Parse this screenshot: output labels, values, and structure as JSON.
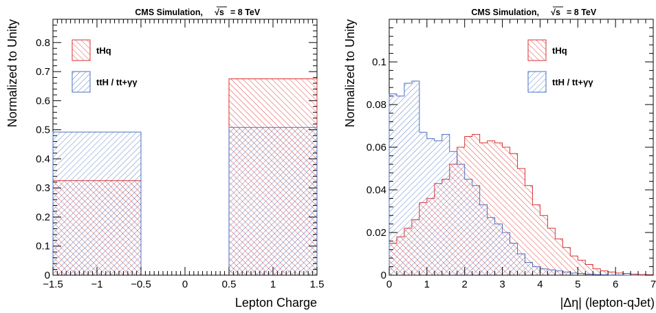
{
  "colors": {
    "tHq": "#d9312f",
    "ttH": "#4a6fc0"
  },
  "chart_data": [
    {
      "type": "histogram",
      "header": "CMS Simulation,",
      "energy": "= 8 TeV",
      "sqrt_symbol": "√s",
      "xlabel": "Lepton Charge",
      "ylabel": "Normalized to Unity",
      "xlim": [
        -1.5,
        1.5
      ],
      "ylim": [
        0,
        0.88
      ],
      "x_ticks": [
        -1.5,
        -1,
        -0.5,
        0,
        0.5,
        1,
        1.5
      ],
      "x_tick_labels": [
        "−1.5",
        "−1",
        "−0.5",
        "0",
        "0.5",
        "1",
        "1.5"
      ],
      "y_ticks": [
        0,
        0.1,
        0.2,
        0.3,
        0.4,
        0.5,
        0.6,
        0.7,
        0.8
      ],
      "y_tick_labels": [
        "0",
        "0.1",
        "0.2",
        "0.3",
        "0.4",
        "0.5",
        "0.6",
        "0.7",
        "0.8"
      ],
      "legend_placement": "top-left",
      "series": [
        {
          "name": "tHq",
          "bins": [
            [
              -1.5,
              -0.5,
              0.325
            ],
            [
              0.5,
              1.5,
              0.675
            ]
          ]
        },
        {
          "name": "ttH / tt+γγ",
          "bins": [
            [
              -1.5,
              -0.5,
              0.492
            ],
            [
              0.5,
              1.5,
              0.508
            ]
          ]
        }
      ]
    },
    {
      "type": "histogram",
      "header": "CMS Simulation,",
      "energy": "= 8 TeV",
      "sqrt_symbol": "√s",
      "xlabel": "|Δη| (lepton-qJet)",
      "ylabel": "Normalized to Unity",
      "xlim": [
        0,
        7
      ],
      "ylim": [
        0,
        0.12
      ],
      "x_ticks": [
        0,
        1,
        2,
        3,
        4,
        5,
        6,
        7
      ],
      "x_tick_labels": [
        "0",
        "1",
        "2",
        "3",
        "4",
        "5",
        "6",
        "7"
      ],
      "y_ticks": [
        0,
        0.02,
        0.04,
        0.06,
        0.08,
        0.1
      ],
      "y_tick_labels": [
        "0",
        "0.02",
        "0.04",
        "0.06",
        "0.08",
        "0.1"
      ],
      "legend_placement": "top-right",
      "bin_edges": [
        0,
        0.2,
        0.4,
        0.6,
        0.8,
        1.0,
        1.2,
        1.4,
        1.6,
        1.8,
        2.0,
        2.2,
        2.4,
        2.6,
        2.8,
        3.0,
        3.2,
        3.4,
        3.6,
        3.8,
        4.0,
        4.2,
        4.4,
        4.6,
        4.8,
        5.0,
        5.2,
        5.4,
        5.6,
        5.8,
        6.0,
        6.2,
        6.4,
        6.6,
        6.8,
        7.0
      ],
      "series": [
        {
          "name": "tHq",
          "values": [
            0.015,
            0.018,
            0.022,
            0.026,
            0.034,
            0.036,
            0.043,
            0.045,
            0.052,
            0.06,
            0.065,
            0.066,
            0.062,
            0.063,
            0.062,
            0.06,
            0.057,
            0.05,
            0.042,
            0.033,
            0.028,
            0.022,
            0.017,
            0.013,
            0.009,
            0.007,
            0.005,
            0.003,
            0.002,
            0.0015,
            0.001,
            0.0008,
            0.0005,
            0.0003,
            0.0002
          ]
        },
        {
          "name": "ttH / tt+γγ",
          "values": [
            0.085,
            0.084,
            0.09,
            0.091,
            0.067,
            0.064,
            0.063,
            0.066,
            0.058,
            0.052,
            0.045,
            0.042,
            0.033,
            0.027,
            0.024,
            0.02,
            0.015,
            0.01,
            0.006,
            0.004,
            0.003,
            0.0025,
            0.002,
            0.0015,
            0.001,
            0.0008,
            0.0005,
            0.0003,
            0.0002,
            0.0001,
            0.0001,
            5e-05,
            5e-05,
            0.0,
            0.0
          ]
        }
      ]
    }
  ]
}
